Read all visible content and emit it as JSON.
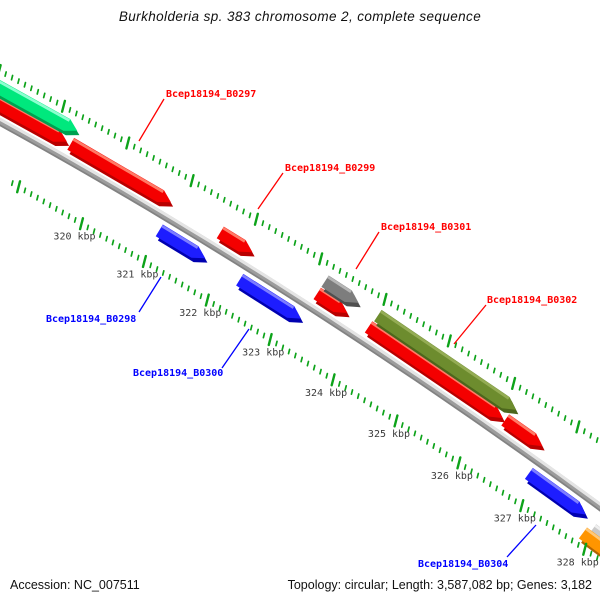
{
  "title": "Burkholderia sp. 383 chromosome 2, complete sequence",
  "status": {
    "left": "Accession: NC_007511",
    "right": "Topology: circular; Length: 3,587,082 bp; Genes: 3,182"
  },
  "chart_data": {
    "type": "genome-map-segment",
    "view_start_kbp": 318.6,
    "view_end_kbp": 328.9,
    "ruler": {
      "unit": "kbp",
      "major_tick_interval_kbp": 1,
      "minor_tick_interval_kbp": 0.1,
      "major_ticks_kbp": [
        320,
        321,
        322,
        323,
        324,
        325,
        326,
        327,
        328
      ],
      "major_tick_labels": [
        "320 kbp",
        "321 kbp",
        "322 kbp",
        "323 kbp",
        "324 kbp",
        "325 kbp",
        "326 kbp",
        "327 kbp",
        "328 kbp"
      ]
    },
    "genes": [
      {
        "id": "unlabeled-red-1",
        "label": "",
        "color": "red",
        "side": "above",
        "tier": 1,
        "start_kbp": 318.55,
        "end_kbp": 319.8,
        "clipped_start": true
      },
      {
        "id": "Bcep18194_B0297",
        "label": "Bcep18194_B0297",
        "color": "red",
        "side": "above",
        "tier": 1,
        "start_kbp": 319.86,
        "end_kbp": 321.42
      },
      {
        "id": "Bcep18194_B0299",
        "label": "Bcep18194_B0299",
        "color": "red",
        "side": "above",
        "tier": 1,
        "start_kbp": 322.19,
        "end_kbp": 322.69
      },
      {
        "id": "unlabeled-red-2",
        "label": "",
        "color": "red",
        "side": "above",
        "tier": 1,
        "start_kbp": 323.7,
        "end_kbp": 324.17
      },
      {
        "id": "unlabeled-red-3",
        "label": "",
        "color": "red",
        "side": "above",
        "tier": 1,
        "start_kbp": 324.5,
        "end_kbp": 326.59
      },
      {
        "id": "unlabeled-red-4",
        "label": "",
        "color": "red",
        "side": "above",
        "tier": 1,
        "start_kbp": 326.63,
        "end_kbp": 327.21
      },
      {
        "id": "unlabeled-green-1",
        "label": "",
        "color": "green",
        "side": "above",
        "tier": 2,
        "start_kbp": 318.5,
        "end_kbp": 319.85,
        "clipped_start": true
      },
      {
        "id": "Bcep18194_B0301",
        "label": "Bcep18194_B0301",
        "color": "gray",
        "side": "above",
        "tier": 2,
        "start_kbp": 323.7,
        "end_kbp": 324.22
      },
      {
        "id": "Bcep18194_B0302",
        "label": "Bcep18194_B0302",
        "color": "olive",
        "side": "above",
        "tier": 2,
        "start_kbp": 324.52,
        "end_kbp": 326.67
      },
      {
        "id": "Bcep18194_B0298",
        "label": "Bcep18194_B0298",
        "color": "blue",
        "side": "below",
        "tier": 1,
        "start_kbp": 321.48,
        "end_kbp": 322.2
      },
      {
        "id": "Bcep18194_B0300",
        "label": "Bcep18194_B0300",
        "color": "blue",
        "side": "below",
        "tier": 1,
        "start_kbp": 322.74,
        "end_kbp": 323.7
      },
      {
        "id": "Bcep18194_B0304",
        "label": "Bcep18194_B0304",
        "color": "blue",
        "side": "below",
        "tier": 1,
        "start_kbp": 327.27,
        "end_kbp": 328.16
      },
      {
        "id": "unlabeled-silver-1",
        "label": "",
        "color": "silver",
        "side": "below",
        "tier": 1,
        "start_kbp": 328.34,
        "end_kbp": 328.95,
        "clipped_end": true
      },
      {
        "id": "unlabeled-orange-1",
        "label": "",
        "color": "orange",
        "side": "below",
        "tier": 2,
        "start_kbp": 328.27,
        "end_kbp": 329.05,
        "clipped_end": true
      }
    ],
    "palette": {
      "red": {
        "base": "#f40000",
        "light": "#ff7a66",
        "dark": "#b80000"
      },
      "blue": {
        "base": "#1d1dff",
        "light": "#7d7dff",
        "dark": "#0000b0"
      },
      "green": {
        "base": "#00e87d",
        "light": "#8cffd0",
        "dark": "#00a050"
      },
      "gray": {
        "base": "#7d7d7d",
        "light": "#b5b5b5",
        "dark": "#4f4f4f"
      },
      "olive": {
        "base": "#6d8c2e",
        "light": "#94ac54",
        "dark": "#4c661c"
      },
      "orange": {
        "base": "#ff9500",
        "light": "#ffc878",
        "dark": "#b26400"
      },
      "silver": {
        "base": "#c9c9c9",
        "light": "#efefef",
        "dark": "#8f8f8f"
      }
    },
    "label_colors": {
      "above": "#ff0000",
      "below": "#0000ff"
    },
    "tick_color": "#0da31a",
    "backbone_color": "#9c9c9c"
  }
}
